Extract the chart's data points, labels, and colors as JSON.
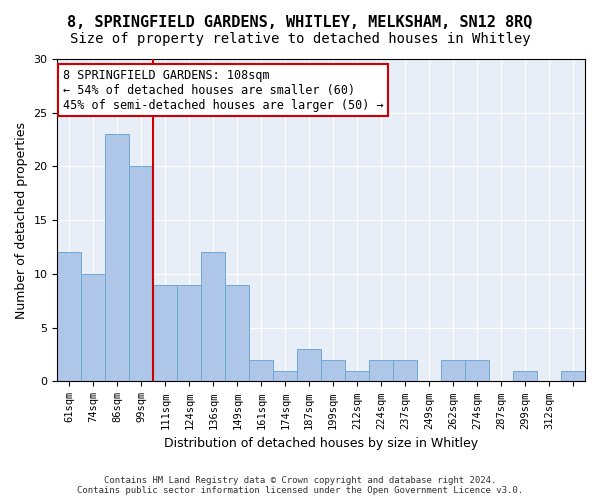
{
  "title": "8, SPRINGFIELD GARDENS, WHITLEY, MELKSHAM, SN12 8RQ",
  "subtitle": "Size of property relative to detached houses in Whitley",
  "xlabel": "Distribution of detached houses by size in Whitley",
  "ylabel": "Number of detached properties",
  "bar_values": [
    12,
    10,
    23,
    20,
    9,
    9,
    12,
    9,
    2,
    1,
    3,
    2,
    1,
    2,
    2,
    0,
    2,
    2,
    0,
    1,
    0,
    1
  ],
  "x_labels": [
    "61sqm",
    "74sqm",
    "86sqm",
    "99sqm",
    "111sqm",
    "124sqm",
    "136sqm",
    "149sqm",
    "161sqm",
    "174sqm",
    "187sqm",
    "199sqm",
    "212sqm",
    "224sqm",
    "237sqm",
    "249sqm",
    "262sqm",
    "274sqm",
    "287sqm",
    "299sqm",
    "312sqm",
    ""
  ],
  "bar_color": "#aec6e8",
  "bar_edge_color": "#6fa8d4",
  "vline_x": 3.5,
  "vline_color": "#cc0000",
  "annotation_line1": "8 SPRINGFIELD GARDENS: 108sqm",
  "annotation_line2": "← 54% of detached houses are smaller (60)",
  "annotation_line3": "45% of semi-detached houses are larger (50) →",
  "annotation_box_color": "#ffffff",
  "annotation_box_edge": "#cc0000",
  "ylim": [
    0,
    30
  ],
  "yticks": [
    0,
    5,
    10,
    15,
    20,
    25,
    30
  ],
  "bg_color": "#e8eef7",
  "footer": "Contains HM Land Registry data © Crown copyright and database right 2024.\nContains public sector information licensed under the Open Government Licence v3.0.",
  "title_fontsize": 11,
  "subtitle_fontsize": 10,
  "ylabel_fontsize": 9,
  "xlabel_fontsize": 9,
  "tick_fontsize": 7.5,
  "annotation_fontsize": 8.5
}
